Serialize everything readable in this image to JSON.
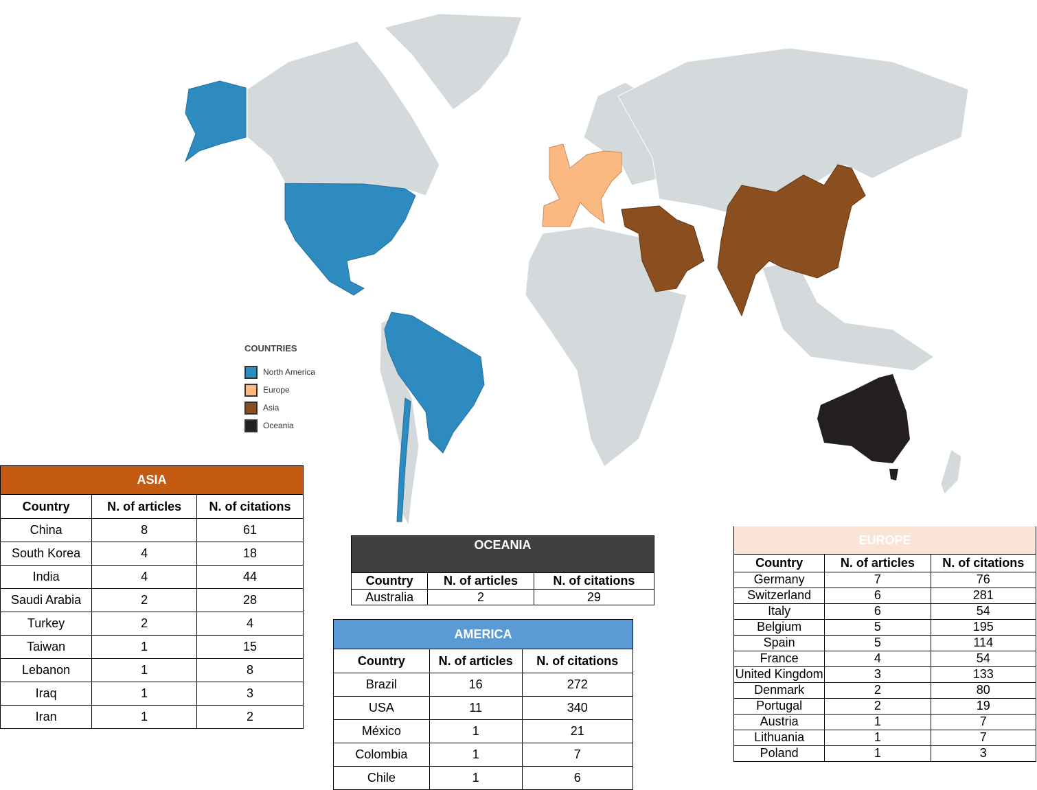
{
  "colors": {
    "north_america": "#2e8bc0",
    "europe": "#fbb982",
    "asia": "#8b4f1f",
    "oceania": "#231f20",
    "land": "#d4d9dc"
  },
  "legend": {
    "title": "COUNTRIES",
    "items": [
      {
        "label": "North America",
        "color": "#2e8bc0"
      },
      {
        "label": "Europe",
        "color": "#fbb982"
      },
      {
        "label": "Asia",
        "color": "#8b4f1f"
      },
      {
        "label": "Oceania",
        "color": "#231f20"
      }
    ]
  },
  "columns": [
    "Country",
    "N. of articles",
    "N. of citations"
  ],
  "asia": {
    "title": "ASIA",
    "rows": [
      [
        "China",
        "8",
        "61"
      ],
      [
        "South Korea",
        "4",
        "18"
      ],
      [
        "India",
        "4",
        "44"
      ],
      [
        "Saudi Arabia",
        "2",
        "28"
      ],
      [
        "Turkey",
        "2",
        "4"
      ],
      [
        "Taiwan",
        "1",
        "15"
      ],
      [
        "Lebanon",
        "1",
        "8"
      ],
      [
        "Iraq",
        "1",
        "3"
      ],
      [
        "Iran",
        "1",
        "2"
      ]
    ]
  },
  "oceania": {
    "title": "OCEANIA",
    "rows": [
      [
        "Australia",
        "2",
        "29"
      ]
    ]
  },
  "america": {
    "title": "AMERICA",
    "rows": [
      [
        "Brazil",
        "16",
        "272"
      ],
      [
        "USA",
        "11",
        "340"
      ],
      [
        "México",
        "1",
        "21"
      ],
      [
        "Colombia",
        "1",
        "7"
      ],
      [
        "Chile",
        "1",
        "6"
      ]
    ]
  },
  "europe": {
    "title": "EUROPE",
    "rows": [
      [
        "Germany",
        "7",
        "76"
      ],
      [
        "Switzerland",
        "6",
        "281"
      ],
      [
        "Italy",
        "6",
        "54"
      ],
      [
        "Belgium",
        "5",
        "195"
      ],
      [
        "Spain",
        "5",
        "114"
      ],
      [
        "France",
        "4",
        "54"
      ],
      [
        "United Kingdom",
        "3",
        "133"
      ],
      [
        "Denmark",
        "2",
        "80"
      ],
      [
        "Portugal",
        "2",
        "19"
      ],
      [
        "Austria",
        "1",
        "7"
      ],
      [
        "Lithuania",
        "1",
        "7"
      ],
      [
        "Poland",
        "1",
        "3"
      ]
    ]
  }
}
